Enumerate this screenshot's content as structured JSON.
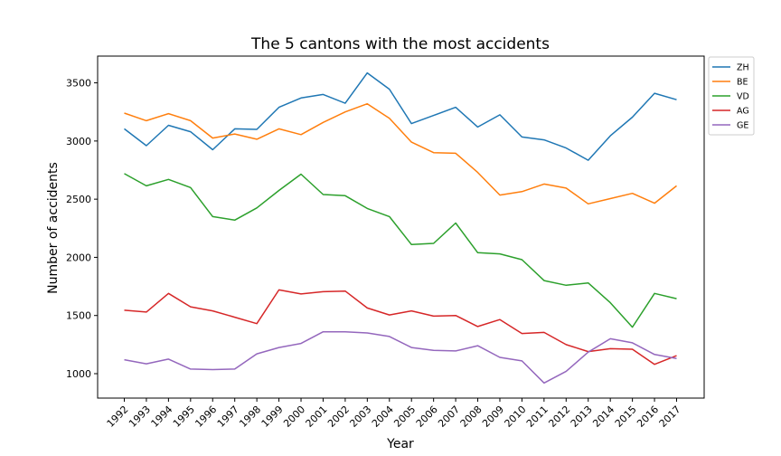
{
  "chart_data": {
    "type": "line",
    "title": "The 5 cantons with the most accidents",
    "xlabel": "Year",
    "ylabel": "Number of accidents",
    "x": [
      "1992",
      "1993",
      "1994",
      "1995",
      "1996",
      "1997",
      "1998",
      "1999",
      "2000",
      "2001",
      "2002",
      "2003",
      "2004",
      "2005",
      "2006",
      "2007",
      "2008",
      "2009",
      "2010",
      "2011",
      "2012",
      "2013",
      "2014",
      "2015",
      "2016",
      "2017"
    ],
    "yticks": [
      1000,
      1500,
      2000,
      2500,
      3000,
      3500
    ],
    "ylim": [
      790,
      3730
    ],
    "grid": false,
    "legend": "outside-upper-right",
    "series": [
      {
        "name": "ZH",
        "color": "#1f77b4",
        "values": [
          3105,
          2960,
          3135,
          3080,
          2925,
          3105,
          3100,
          3290,
          3370,
          3400,
          3325,
          3585,
          3445,
          3150,
          3220,
          3290,
          3120,
          3225,
          3035,
          3010,
          2940,
          2835,
          3045,
          3205,
          3410,
          3355
        ]
      },
      {
        "name": "BE",
        "color": "#ff7f0e",
        "values": [
          3240,
          3175,
          3235,
          3175,
          3025,
          3060,
          3015,
          3105,
          3055,
          3160,
          3250,
          3320,
          3195,
          2990,
          2900,
          2895,
          2730,
          2535,
          2565,
          2630,
          2595,
          2460,
          2505,
          2550,
          2465,
          2615
        ]
      },
      {
        "name": "VD",
        "color": "#2ca02c",
        "values": [
          2720,
          2615,
          2670,
          2600,
          2350,
          2320,
          2425,
          2575,
          2715,
          2540,
          2530,
          2420,
          2350,
          2110,
          2120,
          2295,
          2040,
          2030,
          1980,
          1800,
          1760,
          1780,
          1610,
          1400,
          1690,
          1645
        ]
      },
      {
        "name": "AG",
        "color": "#d62728",
        "values": [
          1545,
          1530,
          1690,
          1575,
          1540,
          1485,
          1430,
          1720,
          1685,
          1705,
          1710,
          1565,
          1505,
          1540,
          1495,
          1500,
          1405,
          1465,
          1345,
          1355,
          1250,
          1190,
          1215,
          1210,
          1080,
          1155
        ]
      },
      {
        "name": "GE",
        "color": "#9467bd",
        "values": [
          1120,
          1085,
          1125,
          1040,
          1035,
          1040,
          1170,
          1225,
          1260,
          1360,
          1360,
          1350,
          1320,
          1225,
          1200,
          1195,
          1240,
          1140,
          1110,
          920,
          1020,
          1185,
          1300,
          1265,
          1165,
          1130
        ]
      }
    ]
  }
}
